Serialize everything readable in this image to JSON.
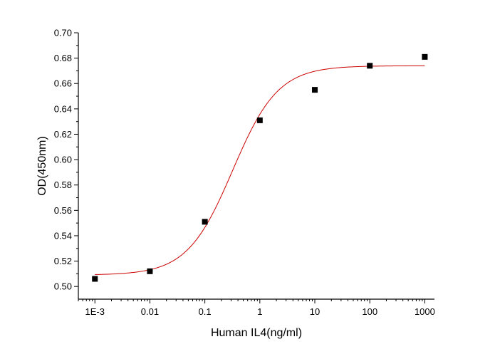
{
  "chart_data": {
    "type": "scatter",
    "title": "",
    "xlabel": "Human IL4(ng/ml)",
    "ylabel": "OD(450nm)",
    "x_scale": "log",
    "xlim": [
      0.0005,
      1500
    ],
    "ylim": [
      0.49,
      0.7
    ],
    "x_ticks": [
      0.001,
      0.01,
      0.1,
      1,
      10,
      100,
      1000
    ],
    "x_tick_labels": [
      "1E-3",
      "0.01",
      "0.1",
      "1",
      "10",
      "100",
      "1000"
    ],
    "y_ticks": [
      0.5,
      0.52,
      0.54,
      0.56,
      0.58,
      0.6,
      0.62,
      0.64,
      0.66,
      0.68,
      0.7
    ],
    "y_tick_labels": [
      "0.50",
      "0.52",
      "0.54",
      "0.56",
      "0.58",
      "0.60",
      "0.62",
      "0.64",
      "0.66",
      "0.68",
      "0.70"
    ],
    "grid": false,
    "legend": "none",
    "series": [
      {
        "kind": "points",
        "marker": "square",
        "color": "#000000",
        "x": [
          0.001,
          0.01,
          0.1,
          1,
          10,
          100,
          1000
        ],
        "y": [
          0.506,
          0.512,
          0.551,
          0.631,
          0.655,
          0.674,
          0.681
        ]
      },
      {
        "kind": "fit-curve",
        "color": "#cc0000",
        "model": "four-parameter logistic",
        "bottom": 0.509,
        "top": 0.674,
        "ec50": 0.32,
        "hill": 1.05,
        "x_range": [
          0.001,
          1000
        ]
      }
    ]
  }
}
